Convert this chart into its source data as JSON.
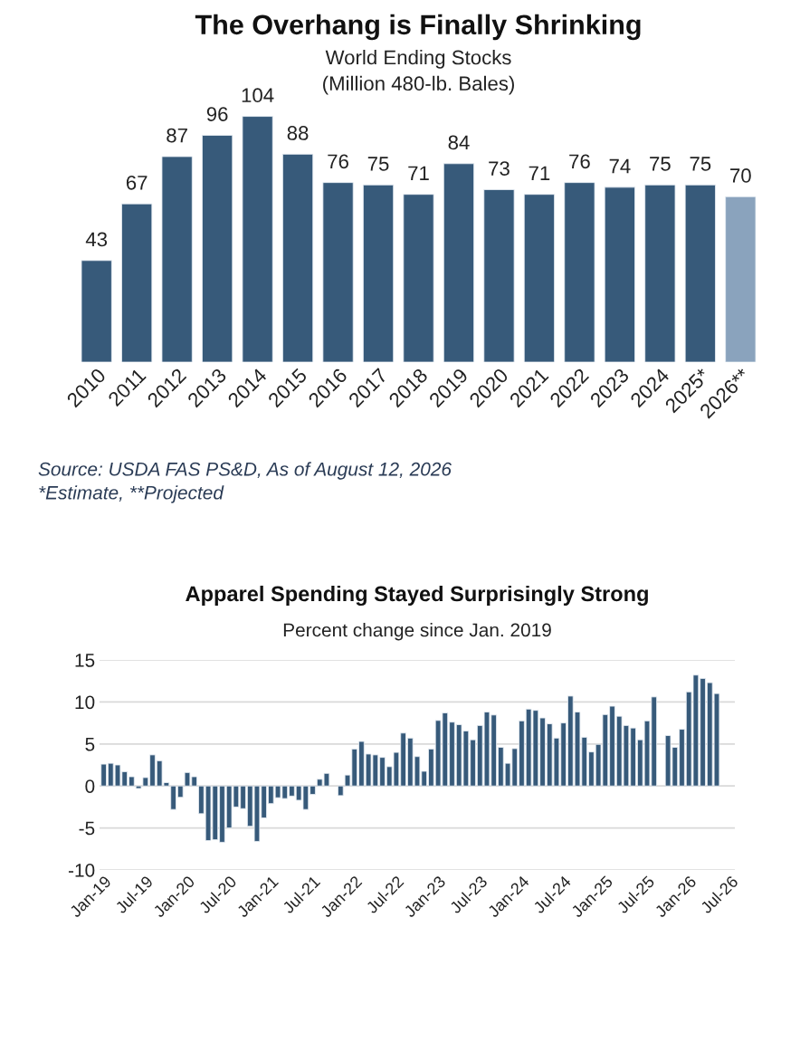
{
  "chart_data": [
    {
      "type": "bar",
      "title": "The Overhang is Finally Shrinking",
      "subtitle": "World Ending Stocks\n(Million 480-lb. Bales)",
      "categories": [
        "2010",
        "2011",
        "2012",
        "2013",
        "2014",
        "2015",
        "2016",
        "2017",
        "2018",
        "2019",
        "2020",
        "2021",
        "2022",
        "2023",
        "2024",
        "2025*",
        "2026**"
      ],
      "values": [
        43,
        67,
        87,
        96,
        104,
        88,
        76,
        75,
        71,
        84,
        73,
        71,
        76,
        74,
        75,
        75,
        70
      ],
      "colors": [
        "#375a7a",
        "#375a7a",
        "#375a7a",
        "#375a7a",
        "#375a7a",
        "#375a7a",
        "#375a7a",
        "#375a7a",
        "#375a7a",
        "#375a7a",
        "#375a7a",
        "#375a7a",
        "#375a7a",
        "#375a7a",
        "#375a7a",
        "#375a7a",
        "#8aa3bd"
      ],
      "data_labels": true,
      "tick_labels": "x",
      "grid": false,
      "legend": false,
      "annotations": [
        "Source: USDA FAS PS&D, As of August 12, 2026",
        "*Estimate, **Projected"
      ]
    },
    {
      "type": "bar",
      "title": "Apparel Spending Stayed Surprisingly Strong",
      "subtitle": "Percent change since Jan. 2019",
      "categories": [
        "Jan-19",
        null,
        null,
        null,
        null,
        null,
        "Jul-19",
        null,
        null,
        null,
        null,
        null,
        "Jan-20",
        null,
        null,
        null,
        null,
        null,
        "Jul-20",
        null,
        null,
        null,
        null,
        null,
        "Jan-21",
        null,
        null,
        null,
        null,
        null,
        "Jul-21",
        null,
        null,
        null,
        null,
        null,
        "Jan-22",
        null,
        null,
        null,
        null,
        null,
        "Jul-22",
        null,
        null,
        null,
        null,
        null,
        "Jan-23",
        null,
        null,
        null,
        null,
        null,
        "Jul-23",
        null,
        null,
        null,
        null,
        null,
        "Jan-24",
        null,
        null,
        null,
        null,
        null,
        "Jul-24",
        null,
        null,
        null,
        null,
        null,
        "Jan-25",
        null,
        null,
        null,
        null,
        null,
        "Jul-25",
        null,
        null,
        null,
        null,
        null,
        "Jan-26",
        null,
        null,
        null,
        null,
        null,
        "Jul-26"
      ],
      "values": [
        2.6,
        2.7,
        2.5,
        1.7,
        1.1,
        -0.3,
        1.0,
        3.7,
        3.0,
        0.4,
        -2.8,
        -1.35,
        1.6,
        1.1,
        -3.3,
        -6.5,
        -6.4,
        -6.7,
        -5.0,
        -2.5,
        -2.7,
        -4.8,
        -6.6,
        -3.8,
        -2.1,
        -1.4,
        -1.5,
        -1.2,
        -1.7,
        -2.8,
        -1.0,
        0.8,
        1.5,
        null,
        -1.15,
        1.3,
        4.4,
        5.3,
        3.8,
        3.7,
        3.4,
        2.3,
        4.0,
        6.3,
        5.7,
        3.5,
        1.75,
        4.4,
        7.8,
        8.7,
        7.6,
        7.3,
        6.55,
        5.5,
        7.2,
        8.8,
        8.45,
        4.6,
        2.7,
        4.45,
        7.75,
        9.15,
        9.0,
        8.1,
        7.4,
        5.7,
        7.5,
        10.7,
        8.8,
        5.8,
        4.05,
        4.95,
        8.5,
        9.5,
        8.3,
        7.2,
        6.9,
        5.5,
        7.75,
        10.6,
        null,
        6.0,
        4.6,
        6.75,
        11.2,
        13.2,
        12.8,
        12.3,
        11.0,
        null,
        null
      ],
      "color": "#375a7a",
      "ylim": [
        -10,
        15
      ],
      "yticks": [
        -10,
        -5,
        0,
        5,
        10,
        15
      ],
      "grid": "y",
      "legend": false
    }
  ]
}
